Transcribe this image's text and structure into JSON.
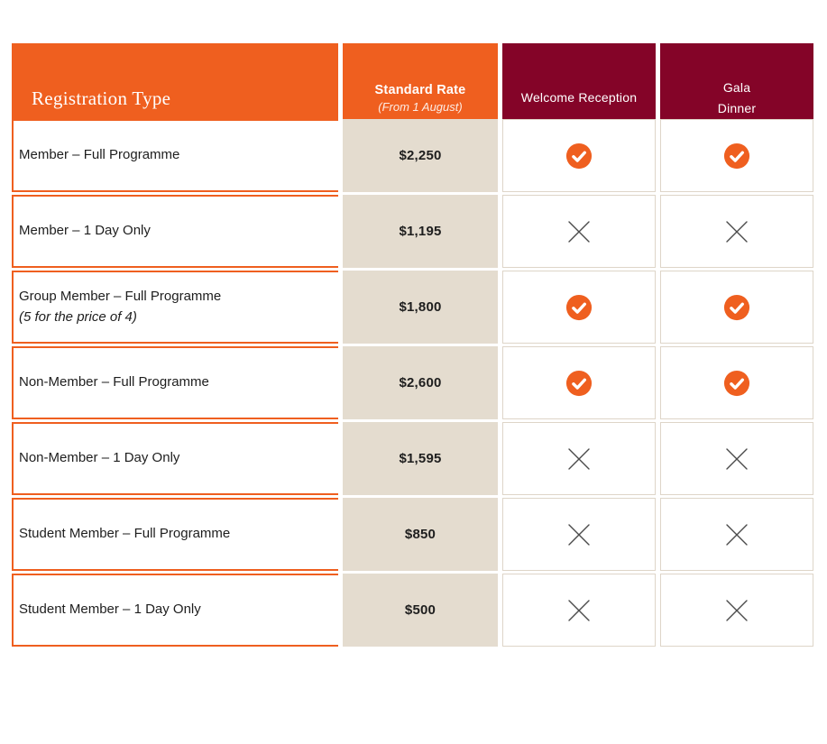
{
  "table": {
    "header": {
      "registration_type": "Registration Type",
      "standard_rate_title": "Standard Rate",
      "standard_rate_subtitle": "(From 1 August)",
      "welcome_reception": "Welcome Reception",
      "gala_dinner": "Gala Dinner"
    },
    "rows": [
      {
        "type": "Member – Full Programme",
        "note": "",
        "rate": "$2,250",
        "welcome_reception": true,
        "gala_dinner": true
      },
      {
        "type": "Member – 1 Day Only",
        "note": "",
        "rate": "$1,195",
        "welcome_reception": false,
        "gala_dinner": false
      },
      {
        "type": "Group Member – Full Programme",
        "note": "(5 for the price of 4)",
        "rate": "$1,800",
        "welcome_reception": true,
        "gala_dinner": true
      },
      {
        "type": "Non-Member – Full Programme",
        "note": "",
        "rate": "$2,600",
        "welcome_reception": true,
        "gala_dinner": true
      },
      {
        "type": "Non-Member – 1 Day Only",
        "note": "",
        "rate": "$1,595",
        "welcome_reception": false,
        "gala_dinner": false
      },
      {
        "type": "Student Member – Full Programme",
        "note": "",
        "rate": "$850",
        "welcome_reception": false,
        "gala_dinner": false
      },
      {
        "type": "Student Member – 1 Day Only",
        "note": "",
        "rate": "$500",
        "welcome_reception": false,
        "gala_dinner": false
      }
    ]
  },
  "icons": {
    "included": "check-icon",
    "not_included": "x-icon"
  },
  "colors": {
    "orange": "#EF5F1F",
    "maroon": "#840428",
    "beige": "#E4DCCF",
    "beige-border": "#DED5C8",
    "ink": "#1E1E1E",
    "cross": "#4A4A4A"
  }
}
